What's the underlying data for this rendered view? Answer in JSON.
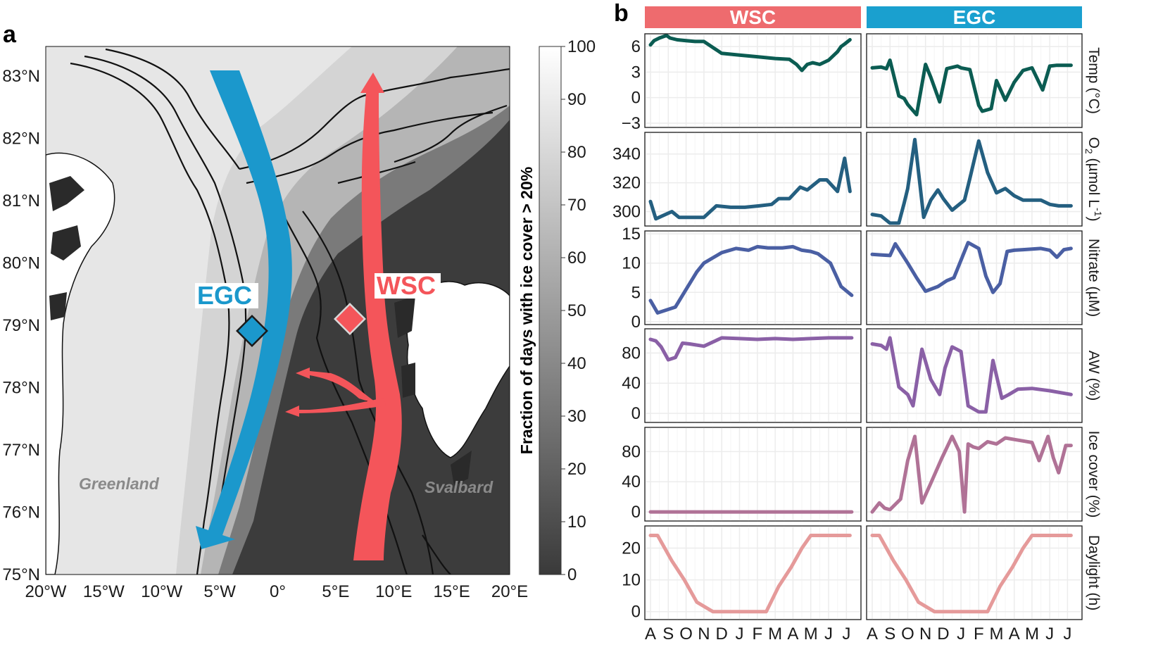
{
  "panel_a": {
    "letter": "a",
    "y_ticks": [
      "83°N",
      "82°N",
      "81°N",
      "80°N",
      "79°N",
      "78°N",
      "77°N",
      "76°N",
      "75°N"
    ],
    "x_ticks": [
      "20°W",
      "15°W",
      "10°W",
      "5°W",
      "0°",
      "5°E",
      "10°E",
      "15°E",
      "20°E"
    ],
    "colorbar": {
      "title": "Fraction of days with ice cover > 20%",
      "ticks": [
        "100",
        "90",
        "80",
        "70",
        "60",
        "50",
        "40",
        "30",
        "20",
        "10",
        "0"
      ]
    },
    "labels": {
      "greenland": "Greenland",
      "svalbard": "Svalbard"
    },
    "stations": {
      "egc": "EGC",
      "wsc": "WSC"
    },
    "colors": {
      "egc": "#1b98cc",
      "wsc": "#f4555a",
      "land": "#ffffff",
      "ocean_dark": "#3c3c3c"
    }
  },
  "panel_b": {
    "letter": "b",
    "strips": [
      {
        "label": "WSC",
        "color": "#ee6b6e"
      },
      {
        "label": "EGC",
        "color": "#1aa0cf"
      }
    ],
    "month_labels": [
      "A",
      "S",
      "O",
      "N",
      "D",
      "J",
      "F",
      "M",
      "A",
      "M",
      "J",
      "J"
    ]
  },
  "chart_data": {
    "type": "line",
    "title": "",
    "x_type": "months, Aug to Jul",
    "xlim": [
      0,
      11.5
    ],
    "categories": [
      "A",
      "S",
      "O",
      "N",
      "D",
      "J",
      "F",
      "M",
      "A",
      "M",
      "J",
      "J"
    ],
    "facets_columns": [
      "WSC",
      "EGC"
    ],
    "rows": [
      {
        "ylabel": "Temp (°C)",
        "ylabel_pre": "Temp (°C)",
        "ylabel_sub": "",
        "ylabel_sup": "",
        "ylabel_post": "",
        "ylim": [
          -3.5,
          7.5
        ],
        "ticks": [
          6,
          3,
          0,
          -3
        ],
        "tick_labels": [
          "6",
          "3",
          "0",
          "−3"
        ],
        "color": "#0b5c52",
        "series": [
          {
            "name": "WSC",
            "x": [
              0,
              0.2,
              0.5,
              0.9,
              1.1,
              1.5,
              2.0,
              2.5,
              3.0,
              4.0,
              5.0,
              6.0,
              7.0,
              7.8,
              8.2,
              8.5,
              8.8,
              9.1,
              9.5,
              10.0,
              10.5,
              10.7,
              10.9,
              11.2
            ],
            "y": [
              6.2,
              6.7,
              7.0,
              7.3,
              7.0,
              6.8,
              6.7,
              6.6,
              6.6,
              5.2,
              5.0,
              4.8,
              4.6,
              4.5,
              3.9,
              3.2,
              3.9,
              4.1,
              3.9,
              4.4,
              5.4,
              6.0,
              6.3,
              6.8
            ]
          },
          {
            "name": "EGC",
            "x": [
              0,
              0.5,
              0.8,
              1.0,
              1.5,
              1.8,
              2.0,
              2.5,
              3.0,
              3.3,
              3.8,
              4.2,
              4.8,
              5.0,
              5.5,
              6.0,
              6.2,
              6.7,
              7.0,
              7.5,
              8.0,
              8.5,
              9.0,
              9.6,
              10.0,
              10.4,
              10.8,
              11.2
            ],
            "y": [
              3.5,
              3.6,
              3.4,
              4.4,
              0.2,
              -0.1,
              -0.8,
              -2.0,
              3.9,
              2.4,
              -0.5,
              3.4,
              3.7,
              3.5,
              3.3,
              -0.9,
              -1.6,
              -1.3,
              2.0,
              -0.3,
              1.8,
              3.2,
              3.5,
              0.9,
              3.7,
              3.8,
              3.8,
              3.8
            ]
          }
        ]
      },
      {
        "ylabel": "O2 (µmol L-1)",
        "ylabel_pre": "O",
        "ylabel_sub": "2",
        "ylabel_mid": " (µmol L",
        "ylabel_sup": "-1",
        "ylabel_post": ")",
        "ylim": [
          290,
          355
        ],
        "ticks": [
          340,
          320,
          300
        ],
        "tick_labels": [
          "340",
          "320",
          "300"
        ],
        "color": "#245f80",
        "series": [
          {
            "name": "WSC",
            "x": [
              0,
              0.3,
              1.2,
              1.6,
              2.5,
              3.0,
              3.7,
              4.5,
              5.3,
              6.1,
              6.8,
              7.2,
              7.8,
              8.4,
              8.8,
              9.5,
              9.9,
              10.5,
              10.9,
              11.2
            ],
            "y": [
              307,
              295,
              300,
              296,
              296,
              296,
              304,
              303,
              303,
              304,
              305,
              309,
              309,
              317,
              315,
              322,
              322,
              314,
              337,
              314
            ]
          },
          {
            "name": "EGC",
            "x": [
              0,
              0.5,
              1.0,
              1.5,
              1.8,
              2.0,
              2.4,
              2.9,
              3.3,
              3.7,
              4.0,
              4.5,
              5.2,
              5.5,
              6.0,
              6.5,
              7.0,
              7.5,
              8.0,
              8.5,
              9.0,
              9.5,
              10.0,
              10.5,
              10.9,
              11.2
            ],
            "y": [
              298,
              297,
              292,
              292,
              306,
              316,
              350,
              296,
              308,
              315,
              309,
              301,
              308,
              323,
              349,
              327,
              313,
              316,
              311,
              308,
              308,
              308,
              305,
              304,
              304,
              304
            ]
          }
        ]
      },
      {
        "ylabel": "Nitrate (µM)",
        "ylabel_pre": "Nitrate (µM)",
        "ylabel_sub": "",
        "ylabel_sup": "",
        "ylabel_post": "",
        "ylim": [
          -0.5,
          15.5
        ],
        "ticks": [
          15,
          10,
          5,
          0
        ],
        "tick_labels": [
          "15",
          "10",
          "5",
          "0"
        ],
        "color": "#4a5fa3",
        "series": [
          {
            "name": "WSC",
            "x": [
              0,
              0.4,
              1.4,
              2.0,
              2.6,
              3.0,
              4.0,
              4.8,
              5.5,
              6.0,
              6.6,
              7.4,
              8.0,
              8.5,
              9.0,
              9.4,
              10.1,
              10.7,
              11.3
            ],
            "y": [
              3.6,
              1.5,
              2.5,
              5.5,
              8.5,
              10.0,
              11.8,
              12.5,
              12.2,
              12.8,
              12.6,
              12.6,
              12.8,
              12.2,
              12.0,
              11.6,
              10.0,
              6.0,
              4.5
            ]
          },
          {
            "name": "EGC",
            "x": [
              0,
              0.5,
              1.0,
              1.3,
              2.0,
              2.5,
              3.0,
              3.7,
              4.2,
              4.6,
              5.0,
              5.4,
              6.0,
              6.4,
              6.8,
              7.2,
              7.6,
              8.0,
              8.5,
              9.0,
              9.5,
              10.0,
              10.4,
              10.8,
              11.2
            ],
            "y": [
              11.5,
              11.4,
              11.3,
              13.3,
              10.0,
              7.5,
              5.2,
              6.0,
              7.0,
              7.5,
              10.5,
              13.5,
              12.5,
              7.8,
              5.0,
              6.5,
              12.0,
              12.2,
              12.3,
              12.4,
              12.5,
              12.2,
              11.0,
              12.3,
              12.5
            ]
          }
        ]
      },
      {
        "ylabel": "AW (%)",
        "ylabel_pre": "AW (%)",
        "ylabel_sub": "",
        "ylabel_sup": "",
        "ylabel_post": "",
        "ylim": [
          -12,
          112
        ],
        "ticks": [
          80,
          40,
          0
        ],
        "tick_labels": [
          "80",
          "40",
          "0"
        ],
        "color": "#8a60a6",
        "series": [
          {
            "name": "WSC",
            "x": [
              0,
              0.3,
              0.6,
              1.0,
              1.4,
              1.8,
              2.2,
              3.0,
              4.0,
              5.0,
              6.0,
              7.0,
              8.0,
              9.0,
              10.0,
              11.3
            ],
            "y": [
              98,
              96,
              88,
              71,
              74,
              93,
              92,
              89,
              100,
              99,
              98,
              99,
              98,
              99,
              100,
              100
            ]
          },
          {
            "name": "EGC",
            "x": [
              0,
              0.5,
              0.8,
              1.0,
              1.5,
              2.0,
              2.3,
              2.8,
              3.3,
              3.8,
              4.1,
              4.5,
              5.0,
              5.4,
              6.0,
              6.4,
              6.8,
              7.3,
              7.7,
              8.2,
              9.0,
              10.0,
              11.2
            ],
            "y": [
              92,
              90,
              85,
              100,
              35,
              25,
              10,
              85,
              45,
              25,
              60,
              88,
              82,
              10,
              2,
              2,
              70,
              20,
              25,
              32,
              33,
              30,
              25
            ]
          }
        ]
      },
      {
        "ylabel": "Ice cover (%)",
        "ylabel_pre": "Ice cover (%)",
        "ylabel_sub": "",
        "ylabel_sup": "",
        "ylabel_post": "",
        "ylim": [
          -12,
          112
        ],
        "ticks": [
          80,
          40,
          0
        ],
        "tick_labels": [
          "80",
          "40",
          "0"
        ],
        "color": "#b07296",
        "series": [
          {
            "name": "WSC",
            "x": [
              0,
              11.3
            ],
            "y": [
              0,
              0
            ]
          },
          {
            "name": "EGC",
            "x": [
              0,
              0.4,
              0.7,
              1.0,
              1.6,
              2.0,
              2.4,
              2.8,
              3.3,
              3.9,
              4.5,
              4.9,
              5.2,
              5.4,
              5.7,
              6.0,
              6.5,
              7.0,
              7.5,
              8.0,
              8.5,
              9.0,
              9.4,
              9.9,
              10.2,
              10.5,
              10.9,
              11.2
            ],
            "y": [
              0,
              12,
              5,
              3,
              17,
              68,
              100,
              12,
              38,
              70,
              100,
              80,
              0,
              90,
              86,
              84,
              93,
              90,
              98,
              96,
              94,
              92,
              68,
              100,
              72,
              52,
              88,
              88
            ]
          }
        ]
      },
      {
        "ylabel": "Daylight (h)",
        "ylabel_pre": "Daylight (h)",
        "ylabel_sub": "",
        "ylabel_sup": "",
        "ylabel_post": "",
        "ylim": [
          -2.5,
          27
        ],
        "ticks": [
          20,
          10,
          0
        ],
        "tick_labels": [
          "20",
          "10",
          "0"
        ],
        "color": "#e59a9a",
        "series": [
          {
            "name": "WSC",
            "x": [
              0,
              0.4,
              1.2,
              1.9,
              2.6,
              3.5,
              4.5,
              5.5,
              6.0,
              6.5,
              7.2,
              7.9,
              8.5,
              9.0,
              10.0,
              11.2
            ],
            "y": [
              24,
              24,
              16,
              10,
              3,
              0,
              0,
              0,
              0,
              0,
              8,
              14,
              20,
              24,
              24,
              24
            ]
          },
          {
            "name": "EGC",
            "x": [
              0,
              0.4,
              1.2,
              1.9,
              2.6,
              3.5,
              4.5,
              5.5,
              6.0,
              6.5,
              7.2,
              7.9,
              8.5,
              9.0,
              10.0,
              11.2
            ],
            "y": [
              24,
              24,
              16,
              10,
              3,
              0,
              0,
              0,
              0,
              0,
              8,
              14,
              20,
              24,
              24,
              24
            ]
          }
        ]
      }
    ]
  }
}
